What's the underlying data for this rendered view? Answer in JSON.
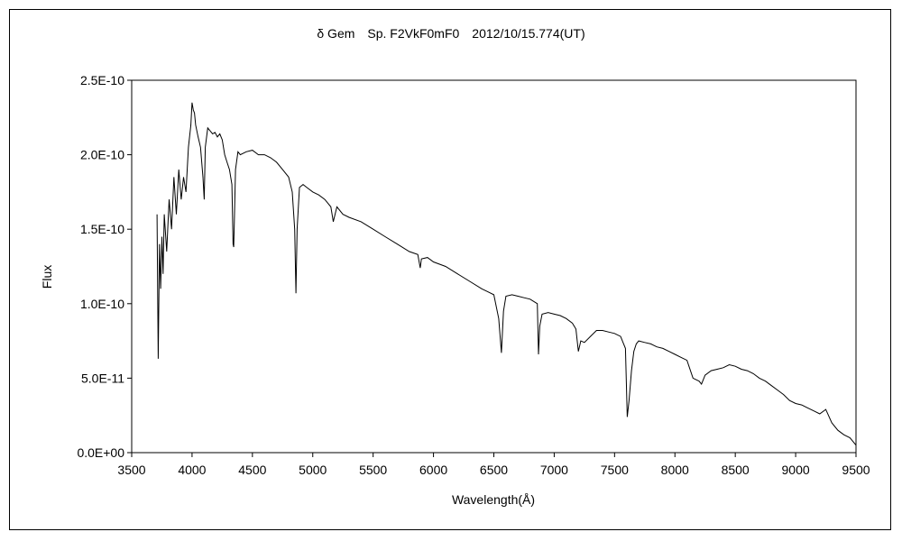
{
  "chart_data": {
    "type": "line",
    "title": "δ Gem　Sp. F2VkF0mF0　2012/10/15.774(UT)",
    "xlabel": "Wavelength(Å)",
    "ylabel": "Flux",
    "xlim": [
      3500,
      9500
    ],
    "ylim": [
      0,
      2.5e-10
    ],
    "x_ticks": [
      3500,
      4000,
      4500,
      5000,
      5500,
      6000,
      6500,
      7000,
      7500,
      8000,
      8500,
      9000,
      9500
    ],
    "y_ticks": [
      0,
      5e-11,
      1e-10,
      1.5e-10,
      2e-10,
      2.5e-10
    ],
    "y_tick_labels": [
      "0.0E+00",
      "5.0E-11",
      "1.0E-10",
      "1.5E-10",
      "2.0E-10",
      "2.5E-10"
    ],
    "grid": false,
    "legend": "none",
    "line_color": "#000000",
    "series": [
      {
        "x": [
          3710,
          3720,
          3730,
          3740,
          3750,
          3760,
          3770,
          3790,
          3810,
          3830,
          3850,
          3870,
          3890,
          3910,
          3930,
          3950,
          3970,
          3990,
          4000,
          4010,
          4020,
          4030,
          4050,
          4070,
          4090,
          4101,
          4110,
          4130,
          4150,
          4170,
          4190,
          4210,
          4230,
          4250,
          4270,
          4290,
          4310,
          4330,
          4340,
          4345,
          4350,
          4360,
          4380,
          4400,
          4450,
          4500,
          4550,
          4600,
          4650,
          4700,
          4750,
          4800,
          4830,
          4850,
          4861,
          4870,
          4890,
          4920,
          4950,
          5000,
          5050,
          5100,
          5150,
          5170,
          5200,
          5250,
          5300,
          5400,
          5500,
          5600,
          5700,
          5800,
          5870,
          5890,
          5900,
          5950,
          6000,
          6100,
          6200,
          6300,
          6400,
          6450,
          6500,
          6540,
          6563,
          6580,
          6600,
          6650,
          6700,
          6750,
          6800,
          6860,
          6870,
          6880,
          6900,
          6950,
          7000,
          7050,
          7100,
          7150,
          7180,
          7200,
          7220,
          7250,
          7300,
          7350,
          7400,
          7450,
          7500,
          7550,
          7590,
          7605,
          7620,
          7640,
          7660,
          7680,
          7700,
          7750,
          7800,
          7850,
          7900,
          7950,
          8000,
          8050,
          8100,
          8150,
          8200,
          8220,
          8250,
          8300,
          8350,
          8400,
          8450,
          8500,
          8550,
          8600,
          8650,
          8700,
          8750,
          8800,
          8850,
          8900,
          8950,
          9000,
          9050,
          9100,
          9150,
          9200,
          9250,
          9300,
          9350,
          9400,
          9450,
          9500
        ],
        "y": [
          1.6e-10,
          6.3e-11,
          1.4e-10,
          1.1e-10,
          1.45e-10,
          1.2e-10,
          1.6e-10,
          1.35e-10,
          1.7e-10,
          1.5e-10,
          1.85e-10,
          1.6e-10,
          1.9e-10,
          1.7e-10,
          1.85e-10,
          1.75e-10,
          2.05e-10,
          2.2e-10,
          2.35e-10,
          2.3e-10,
          2.28e-10,
          2.2e-10,
          2.12e-10,
          2.05e-10,
          1.85e-10,
          1.7e-10,
          2.05e-10,
          2.18e-10,
          2.16e-10,
          2.14e-10,
          2.15e-10,
          2.12e-10,
          2.14e-10,
          2.1e-10,
          2e-10,
          1.95e-10,
          1.9e-10,
          1.8e-10,
          1.4e-10,
          1.38e-10,
          1.55e-10,
          1.9e-10,
          2.02e-10,
          2e-10,
          2.02e-10,
          2.03e-10,
          2e-10,
          2e-10,
          1.98e-10,
          1.95e-10,
          1.9e-10,
          1.85e-10,
          1.75e-10,
          1.5e-10,
          1.07e-10,
          1.5e-10,
          1.78e-10,
          1.8e-10,
          1.78e-10,
          1.75e-10,
          1.73e-10,
          1.7e-10,
          1.65e-10,
          1.55e-10,
          1.65e-10,
          1.6e-10,
          1.58e-10,
          1.55e-10,
          1.5e-10,
          1.45e-10,
          1.4e-10,
          1.35e-10,
          1.33e-10,
          1.24e-10,
          1.3e-10,
          1.31e-10,
          1.28e-10,
          1.25e-10,
          1.2e-10,
          1.15e-10,
          1.1e-10,
          1.08e-10,
          1.06e-10,
          9e-11,
          6.7e-11,
          9.5e-11,
          1.05e-10,
          1.06e-10,
          1.05e-10,
          1.04e-10,
          1.03e-10,
          1e-10,
          6.6e-11,
          8.5e-11,
          9.3e-11,
          9.4e-11,
          9.3e-11,
          9.2e-11,
          9e-11,
          8.7e-11,
          8.3e-11,
          6.8e-11,
          7.5e-11,
          7.4e-11,
          7.8e-11,
          8.2e-11,
          8.2e-11,
          8.1e-11,
          8e-11,
          7.8e-11,
          7e-11,
          2.4e-11,
          3.5e-11,
          5.5e-11,
          6.8e-11,
          7.3e-11,
          7.5e-11,
          7.4e-11,
          7.3e-11,
          7.1e-11,
          7e-11,
          6.8e-11,
          6.6e-11,
          6.4e-11,
          6.2e-11,
          5e-11,
          4.8e-11,
          4.6e-11,
          5.2e-11,
          5.5e-11,
          5.6e-11,
          5.7e-11,
          5.9e-11,
          5.8e-11,
          5.6e-11,
          5.5e-11,
          5.3e-11,
          5e-11,
          4.8e-11,
          4.5e-11,
          4.2e-11,
          3.9e-11,
          3.5e-11,
          3.3e-11,
          3.2e-11,
          3e-11,
          2.8e-11,
          2.6e-11,
          2.9e-11,
          2e-11,
          1.5e-11,
          1.2e-11,
          1e-11,
          5e-12
        ]
      }
    ]
  }
}
